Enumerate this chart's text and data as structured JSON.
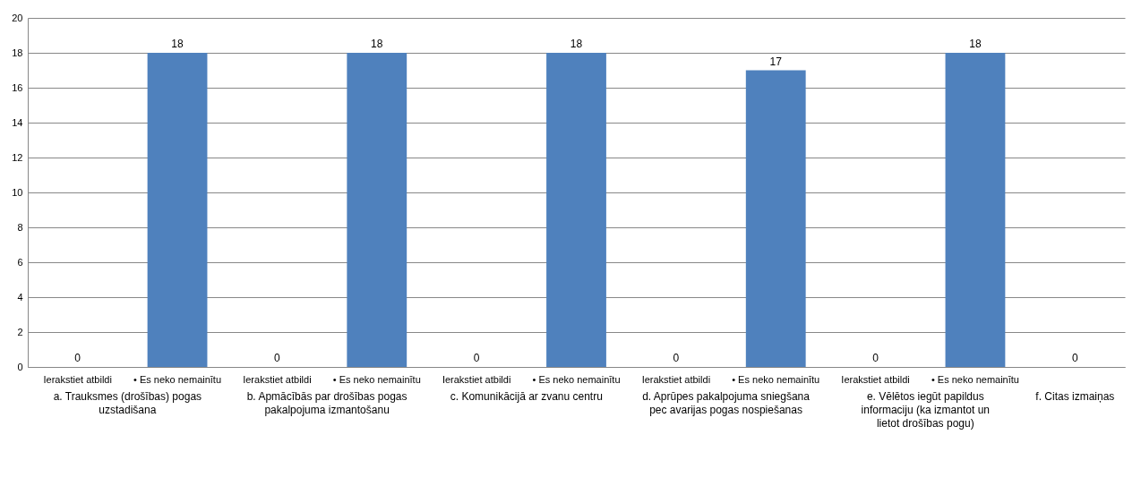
{
  "chart_data": {
    "type": "bar",
    "categories": [
      "Ierakstiet atbildi",
      "• Es neko nemainītu",
      "Ierakstiet atbildi",
      "• Es neko nemainītu",
      "Ierakstiet atbildi",
      "• Es neko nemainītu",
      "Ierakstiet atbildi",
      "• Es neko nemainītu",
      "Ierakstiet atbildi",
      "• Es neko nemainītu",
      null
    ],
    "values": [
      0,
      18,
      0,
      18,
      0,
      18,
      0,
      17,
      0,
      18,
      0
    ],
    "color": "#4f81bd",
    "data_labels": true,
    "grid": true,
    "ylim": [
      0,
      20
    ],
    "yticks": [
      0,
      2,
      4,
      6,
      8,
      10,
      12,
      14,
      16,
      18,
      20
    ],
    "annotations": [
      "a. Trauksmes (drošības) pogas uzstadišana",
      "b. Apmācībās par drošības pogas pakalpojuma izmantošanu",
      "c. Komunikācijā ar zvanu centru",
      "d. Aprūpes pakalpojuma sniegšana pec avarijas pogas nospiešanas",
      "e. Vēlētos iegūt papildus informaciju (ka izmantot un lietot drošības pogu)",
      "f. Citas izmaiņas"
    ]
  }
}
